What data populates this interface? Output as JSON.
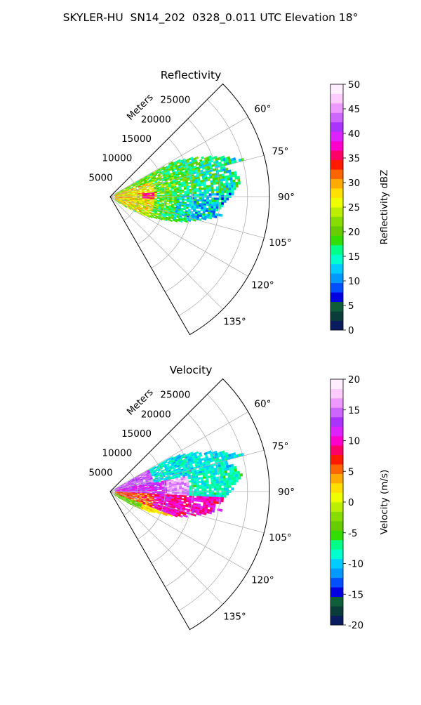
{
  "figure_title": "SKYLER-HU  SN14_202  0328_0.011 UTC Elevation 18°",
  "chart_data": [
    {
      "type": "heatmap",
      "subtype": "polar-sector",
      "title": "Reflectivity",
      "range_label": "Meters",
      "range_ticks": [
        5000,
        10000,
        15000,
        20000,
        25000
      ],
      "rmax": 29000,
      "azimuth_min": 45,
      "azimuth_max": 150,
      "azimuth_ticks": [
        "60°",
        "75°",
        "90°",
        "105°",
        "120°",
        "135°"
      ],
      "azimuth_tick_values": [
        60,
        75,
        90,
        105,
        120,
        135
      ],
      "grid": true,
      "colorbar": {
        "label": "Reflectivity dBZ",
        "min": 0,
        "max": 50,
        "ticks": [
          0,
          5,
          10,
          15,
          20,
          25,
          30,
          35,
          40,
          45,
          50
        ],
        "colors": [
          "#0a1b5e",
          "#0a3d3a",
          "#0f5e3a",
          "#0000e0",
          "#0050ff",
          "#0099ff",
          "#00ccff",
          "#00ffcc",
          "#00ff88",
          "#33dd00",
          "#66cc00",
          "#88dd00",
          "#bbee00",
          "#eeff00",
          "#ffe000",
          "#ffaa00",
          "#ff6600",
          "#ff1a00",
          "#ff0066",
          "#ff00cc",
          "#dd22ff",
          "#aa33ff",
          "#cc66ff",
          "#ee99ff",
          "#ffccff",
          "#ffeeff"
        ]
      }
    },
    {
      "type": "heatmap",
      "subtype": "polar-sector",
      "title": "Velocity",
      "range_label": "Meters",
      "range_ticks": [
        5000,
        10000,
        15000,
        20000,
        25000
      ],
      "rmax": 29000,
      "azimuth_min": 45,
      "azimuth_max": 150,
      "azimuth_ticks": [
        "60°",
        "75°",
        "90°",
        "105°",
        "120°",
        "135°"
      ],
      "azimuth_tick_values": [
        60,
        75,
        90,
        105,
        120,
        135
      ],
      "grid": true,
      "colorbar": {
        "label": "Velocity (m/s)",
        "min": -20,
        "max": 20,
        "ticks": [
          -20,
          -15,
          -10,
          -5,
          0,
          5,
          10,
          15,
          20
        ],
        "colors": [
          "#0a1b5e",
          "#0a3d3a",
          "#0f5e3a",
          "#0000e0",
          "#0050ff",
          "#0099ff",
          "#00ccff",
          "#00ffcc",
          "#00ff88",
          "#33dd00",
          "#66cc00",
          "#88dd00",
          "#bbee00",
          "#eeff00",
          "#ffe000",
          "#ffaa00",
          "#ff6600",
          "#ff1a00",
          "#ff0066",
          "#ff00cc",
          "#dd22ff",
          "#aa33ff",
          "#cc66ff",
          "#ee99ff",
          "#ffccff",
          "#ffeeff"
        ]
      }
    }
  ]
}
